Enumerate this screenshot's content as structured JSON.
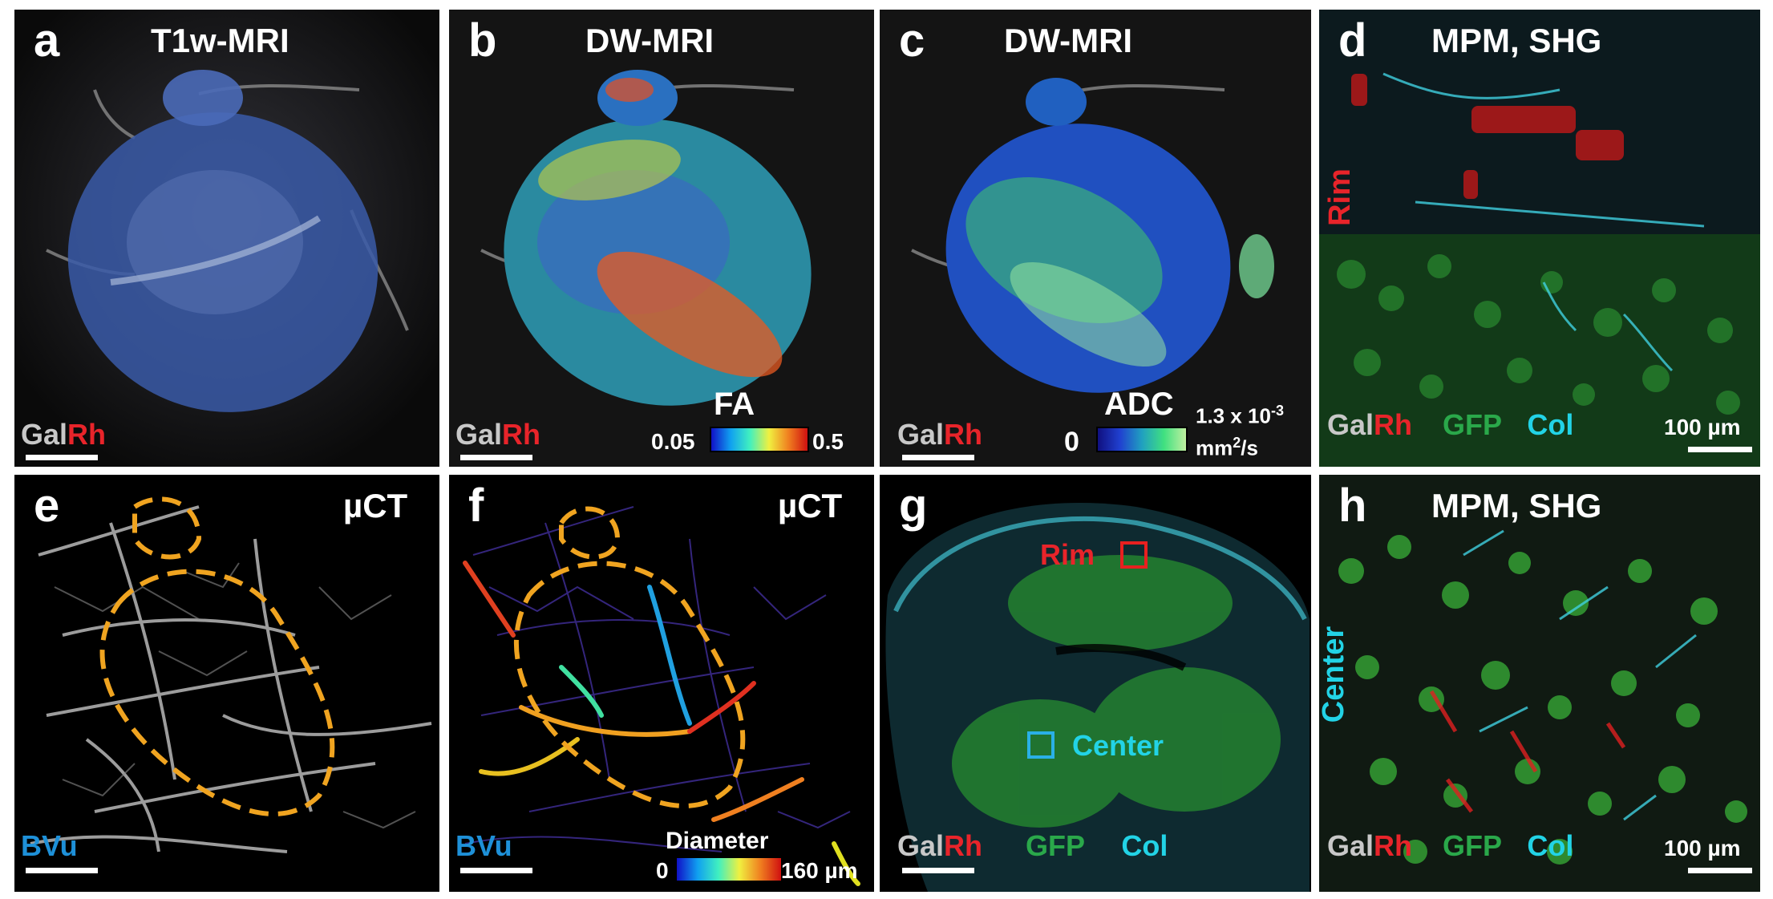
{
  "colors": {
    "gal": "#c8c8c8",
    "rh": "#e8242a",
    "gfp": "#2aa84a",
    "col": "#22d3e6",
    "bvu": "#1e90d8",
    "outline": "#f0a420"
  },
  "panels": {
    "a": {
      "letter": "a",
      "title": "T1w-MRI",
      "gal": "Gal",
      "rh": "Rh"
    },
    "b": {
      "letter": "b",
      "title": "DW-MRI",
      "gal": "Gal",
      "rh": "Rh",
      "colorbar": {
        "label": "FA",
        "min": "0.05",
        "max": "0.5"
      }
    },
    "c": {
      "letter": "c",
      "title": "DW-MRI",
      "gal": "Gal",
      "rh": "Rh",
      "colorbar": {
        "label": "ADC",
        "min": "0",
        "max": "1.3 x 10",
        "max_exp": "-3",
        "unit_a": "mm",
        "unit_exp": "2",
        "unit_b": "/s"
      }
    },
    "d": {
      "letter": "d",
      "title": "MPM, SHG",
      "side": "Rim",
      "gal": "Gal",
      "rh": "Rh",
      "gfp": "GFP",
      "col": "Col",
      "scale": "100 µm"
    },
    "e": {
      "letter": "e",
      "title": "µCT",
      "bvu": "BVu"
    },
    "f": {
      "letter": "f",
      "title": "µCT",
      "bvu": "BVu",
      "colorbar": {
        "label": "Diameter",
        "min": "0",
        "max": "160 µm"
      }
    },
    "g": {
      "letter": "g",
      "rim": "Rim",
      "center": "Center",
      "gal": "Gal",
      "rh": "Rh",
      "gfp": "GFP",
      "col": "Col"
    },
    "h": {
      "letter": "h",
      "title": "MPM, SHG",
      "side": "Center",
      "gal": "Gal",
      "rh": "Rh",
      "gfp": "GFP",
      "col": "Col",
      "scale": "100 µm"
    }
  }
}
